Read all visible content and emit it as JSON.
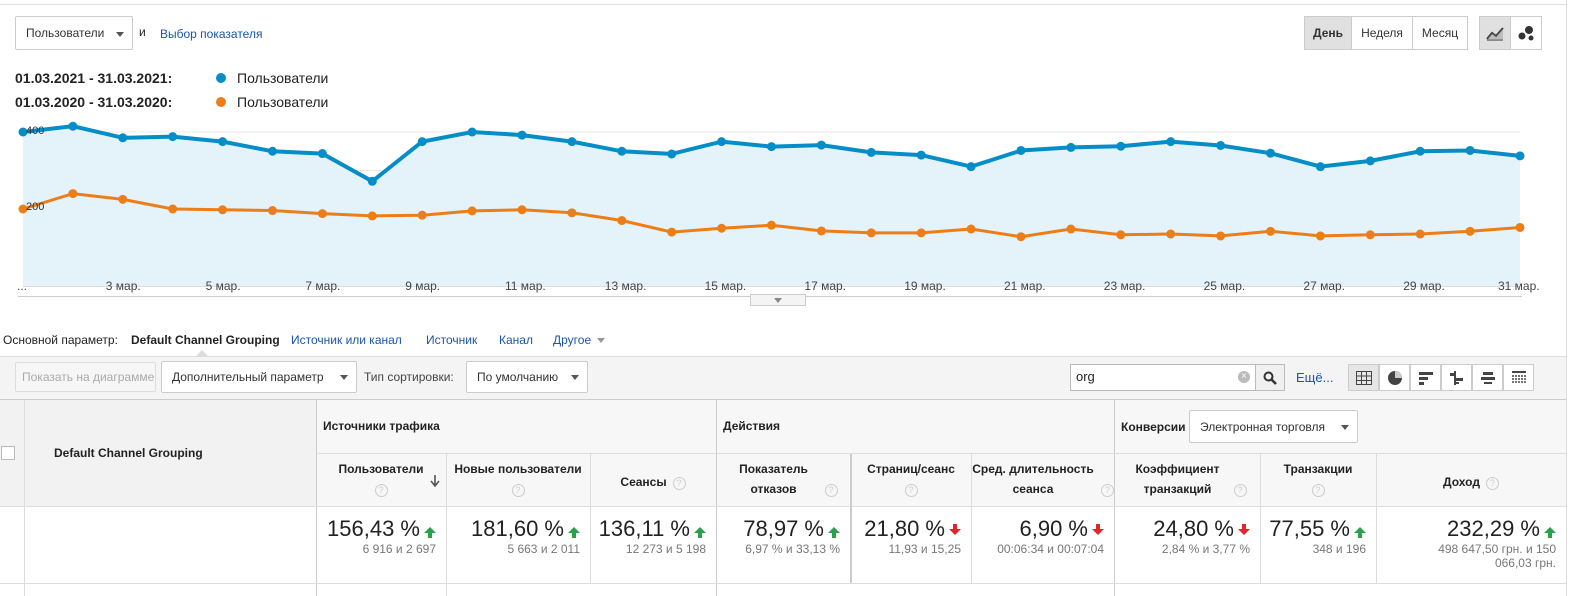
{
  "controls": {
    "metric_select": "Пользователи",
    "and": "и",
    "choose_metric": "Выбор показателя",
    "period_buttons": [
      "День",
      "Неделя",
      "Месяц"
    ],
    "active_period": "День"
  },
  "legend": [
    {
      "range": "01.03.2021 - 31.03.2021:",
      "metric": "Пользователи",
      "color": "#058dc7"
    },
    {
      "range": "01.03.2020 - 31.03.2020:",
      "metric": "Пользователи",
      "color": "#ed7e17"
    }
  ],
  "chart_data": {
    "type": "line",
    "title": "",
    "xlabel": "",
    "ylabel": "",
    "ylim": [
      0,
      500
    ],
    "x": [
      "1 мар.",
      "2 мар.",
      "3 мар.",
      "4 мар.",
      "5 мар.",
      "6 мар.",
      "7 мар.",
      "8 мар.",
      "9 мар.",
      "10 мар.",
      "11 мар.",
      "12 мар.",
      "13 мар.",
      "14 мар.",
      "15 мар.",
      "16 мар.",
      "17 мар.",
      "18 мар.",
      "19 мар.",
      "20 мар.",
      "21 мар.",
      "22 мар.",
      "23 мар.",
      "24 мар.",
      "25 мар.",
      "26 мар.",
      "27 мар.",
      "28 мар.",
      "29 мар.",
      "30 мар.",
      "31 мар."
    ],
    "x_tick_labels": [
      "...",
      "3 мар.",
      "5 мар.",
      "7 мар.",
      "9 мар.",
      "11 мар.",
      "13 мар.",
      "15 мар.",
      "17 мар.",
      "19 мар.",
      "21 мар.",
      "23 мар.",
      "25 мар.",
      "27 мар.",
      "29 мар.",
      "31 мар."
    ],
    "y_tick_labels": [
      "400",
      "200"
    ],
    "series": [
      {
        "name": "Пользователи 2021",
        "color": "#058dc7",
        "values": [
          400,
          415,
          385,
          388,
          375,
          350,
          344,
          272,
          375,
          400,
          392,
          375,
          350,
          343,
          375,
          362,
          366,
          347,
          340,
          310,
          352,
          360,
          363,
          375,
          365,
          345,
          310,
          325,
          350,
          352,
          338
        ]
      },
      {
        "name": "Пользователи 2020",
        "color": "#ed7e17",
        "values": [
          200,
          240,
          225,
          200,
          198,
          196,
          188,
          182,
          184,
          195,
          198,
          190,
          170,
          140,
          150,
          158,
          143,
          138,
          138,
          148,
          128,
          148,
          133,
          135,
          130,
          142,
          130,
          133,
          135,
          142,
          152
        ]
      }
    ]
  },
  "dimension_bar": {
    "label": "Основной параметр:",
    "active": "Default Channel Grouping",
    "links": [
      "Источник или канал",
      "Источник",
      "Канал",
      "Другое"
    ]
  },
  "toolbar": {
    "plot_rows": "Показать на диаграмме",
    "secondary_dim": "Дополнительный параметр",
    "sort_label": "Тип сортировки:",
    "sort_value": "По умолчанию",
    "search_value": "org",
    "more": "Ещё..."
  },
  "table": {
    "dim_header": "Default Channel Grouping",
    "groups": {
      "acquisition": "Источники трафика",
      "behavior": "Действия",
      "conversions": "Конверсии",
      "conversions_select": "Электронная торговля"
    },
    "columns": [
      "Пользователи",
      "Новые пользователи",
      "Сеансы",
      "Показатель отказов",
      "Страниц/сеанс",
      "Сред. длительность сеанса",
      "Коэффициент транзакций",
      "Транзакции",
      "Доход"
    ],
    "q": "?",
    "summary": [
      {
        "pct": "156,43 %",
        "detail": "6 916 и 2 697",
        "trend": "up"
      },
      {
        "pct": "181,60 %",
        "detail": "5 663 и 2 011",
        "trend": "up"
      },
      {
        "pct": "136,11 %",
        "detail": "12 273 и 5 198",
        "trend": "up"
      },
      {
        "pct": "78,97 %",
        "detail": "6,97 % и 33,13 %",
        "trend": "up"
      },
      {
        "pct": "21,80 %",
        "detail": "11,93 и 15,25",
        "trend": "down"
      },
      {
        "pct": "6,90 %",
        "detail": "00:06:34 и 00:07:04",
        "trend": "down"
      },
      {
        "pct": "24,80 %",
        "detail": "2,84 % и 3,77 %",
        "trend": "down"
      },
      {
        "pct": "77,55 %",
        "detail": "348 и 196",
        "trend": "up"
      },
      {
        "pct": "232,29 %",
        "detail": "498 647,50 грн. и 150 066,03 грн.",
        "trend": "up"
      }
    ]
  }
}
